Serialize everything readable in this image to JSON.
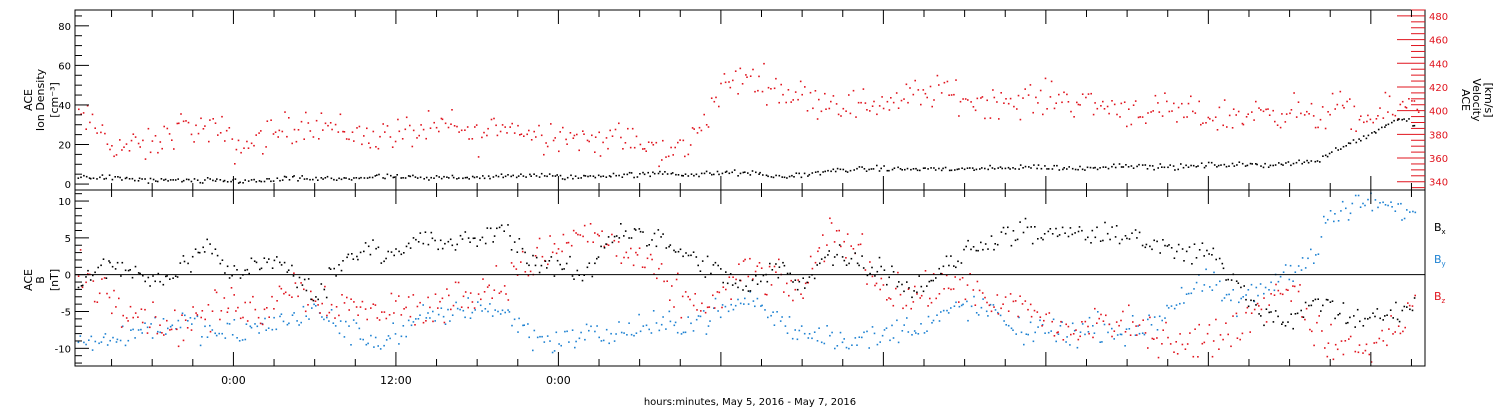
{
  "colors": {
    "black": "#000000",
    "red": "#e0141e",
    "blue": "#1e82d2"
  },
  "chart_data": [
    {
      "type": "scatter",
      "title": "",
      "ylabel_lines": [
        "ACE",
        "Ion Density",
        "[cm⁻³]"
      ],
      "y2label_lines": [
        "ACE",
        "Velocity",
        "[km/s]"
      ],
      "ylim": [
        -3,
        88
      ],
      "yticks": [
        0,
        20,
        40,
        60,
        80
      ],
      "y2lim": [
        333,
        485
      ],
      "y2ticks": [
        340,
        360,
        380,
        400,
        420,
        440,
        460,
        480
      ],
      "xlim": [
        -11.7,
        88
      ],
      "grid": false,
      "series": [
        {
          "role": "density",
          "axis": "left",
          "color": "black",
          "x": [
            -11.5,
            -10,
            -8,
            -6,
            -4,
            -2,
            0,
            2,
            4,
            6,
            8,
            10,
            12,
            14,
            16,
            18,
            20,
            22,
            24,
            26,
            28,
            30,
            32,
            34,
            36,
            38,
            40,
            42,
            44,
            46,
            48,
            50,
            52,
            54,
            56,
            58,
            60,
            62,
            64,
            66,
            68,
            70,
            72,
            74,
            76,
            78,
            80,
            81.5,
            82.5,
            83.5,
            84.5,
            85.5,
            86.5,
            87.2
          ],
          "values": [
            4,
            4,
            3,
            2,
            2,
            2,
            2,
            2,
            3,
            3,
            3,
            4,
            4,
            3,
            4,
            4,
            4,
            5,
            4,
            4,
            5,
            5,
            6,
            5,
            6,
            6,
            4,
            5,
            7,
            8,
            8,
            8,
            8,
            8,
            8,
            9,
            9,
            8,
            9,
            10,
            9,
            9,
            10,
            10,
            10,
            11,
            12,
            18,
            22,
            24,
            28,
            32,
            34,
            30
          ],
          "points": 520,
          "scatter": 1.2
        },
        {
          "role": "velocity",
          "axis": "right",
          "color": "red",
          "x": [
            -11.5,
            -10,
            -9,
            -8,
            -6,
            -4,
            -2,
            -1,
            0,
            1,
            2,
            4,
            6,
            8,
            10,
            12,
            14,
            16,
            18,
            20,
            22,
            24,
            26,
            28,
            30,
            31,
            32,
            33,
            34,
            36,
            38,
            40,
            42,
            44,
            46,
            48,
            50,
            52,
            54,
            56,
            58,
            60,
            62,
            64,
            66,
            68,
            70,
            72,
            74,
            76,
            78,
            80,
            80.5,
            81.5,
            82.5,
            83.5,
            84.5,
            85.5,
            86.5,
            87.5
          ],
          "values": [
            396,
            385,
            372,
            370,
            370,
            388,
            384,
            383,
            370,
            372,
            378,
            386,
            392,
            384,
            378,
            382,
            383,
            388,
            378,
            390,
            380,
            382,
            375,
            378,
            372,
            368,
            362,
            370,
            378,
            420,
            430,
            420,
            412,
            409,
            405,
            408,
            412,
            418,
            410,
            409,
            408,
            412,
            410,
            405,
            402,
            400,
            398,
            396,
            395,
            400,
            402,
            392,
            400,
            405,
            395,
            392,
            396,
            400,
            404,
            408
          ],
          "points": 560,
          "scatter": 12
        }
      ]
    },
    {
      "type": "scatter",
      "title": "",
      "ylabel_lines": [
        "ACE",
        "B",
        "[nT]"
      ],
      "ylim": [
        -12.4,
        11.5
      ],
      "yticks": [
        -10,
        -5,
        0,
        5,
        10
      ],
      "xlim": [
        -11.7,
        88
      ],
      "xticks": [
        0,
        12,
        24
      ],
      "xticklabels": [
        "0:00",
        "12:00",
        "0:00"
      ],
      "xlabel": "hours:minutes, May  5, 2016 - May  7, 2016",
      "zero_line": true,
      "legend_position": "right",
      "grid": false,
      "series": [
        {
          "name": "Bx",
          "name_main": "B",
          "name_sub": "x",
          "color": "black",
          "x": [
            -11.5,
            -10,
            -8,
            -6,
            -4,
            -2,
            0,
            2,
            4,
            6,
            8,
            10,
            12,
            14,
            16,
            18,
            20,
            22,
            24,
            26,
            28,
            30,
            32,
            34,
            36,
            38,
            40,
            42,
            44,
            46,
            48,
            50,
            52,
            54,
            56,
            58,
            60,
            62,
            64,
            66,
            68,
            70,
            72,
            74,
            76,
            78,
            80,
            80.5,
            82,
            84,
            86,
            87.2
          ],
          "values": [
            -2,
            1,
            1,
            -1,
            1,
            4,
            0,
            2,
            1,
            -3,
            2,
            4,
            3,
            5,
            4,
            5,
            6,
            2,
            1,
            0,
            6,
            6,
            4,
            2,
            0,
            -2,
            1,
            -1,
            3,
            2,
            1,
            -2,
            0,
            3,
            5,
            6,
            5,
            6,
            5,
            6,
            4,
            3,
            3,
            -1,
            -5,
            -6,
            -4,
            -3,
            -6,
            -6,
            -5,
            -4
          ],
          "points": 540,
          "scatter": 1.4
        },
        {
          "name": "By",
          "name_main": "B",
          "name_sub": "y",
          "color": "blue",
          "x": [
            -11.5,
            -10,
            -8,
            -6,
            -4,
            -2,
            0,
            2,
            4,
            6,
            8,
            10,
            12,
            14,
            16,
            18,
            20,
            22,
            24,
            26,
            28,
            30,
            32,
            34,
            36,
            38,
            40,
            42,
            44,
            46,
            48,
            50,
            52,
            54,
            56,
            58,
            60,
            62,
            64,
            66,
            68,
            70,
            72,
            74,
            76,
            78,
            80,
            80.5,
            82,
            84,
            86,
            87.2
          ],
          "values": [
            -9,
            -9,
            -8,
            -7,
            -6,
            -8,
            -8,
            -7,
            -6,
            -5,
            -7,
            -9,
            -8,
            -6,
            -5,
            -4,
            -5,
            -8,
            -9,
            -8,
            -8,
            -7,
            -7,
            -6,
            -5,
            -3,
            -6,
            -8,
            -8,
            -9,
            -8,
            -7,
            -6,
            -4,
            -5,
            -8,
            -7,
            -8,
            -7,
            -8,
            -6,
            -3,
            -1,
            -4,
            -2,
            1,
            3,
            7,
            9,
            10,
            9,
            8
          ],
          "points": 540,
          "scatter": 1.6
        },
        {
          "name": "Bz",
          "name_main": "B",
          "name_sub": "z",
          "color": "red",
          "x": [
            -11.5,
            -10,
            -8,
            -6,
            -4,
            -2,
            0,
            2,
            4,
            6,
            8,
            10,
            12,
            14,
            16,
            18,
            20,
            22,
            24,
            26,
            28,
            30,
            32,
            34,
            36,
            38,
            40,
            42,
            44,
            46,
            48,
            50,
            52,
            54,
            56,
            58,
            60,
            62,
            64,
            66,
            68,
            70,
            72,
            74,
            76,
            78,
            80,
            80.5,
            82,
            84,
            86,
            87.2
          ],
          "values": [
            1,
            -2,
            -4,
            -6,
            -7,
            -5,
            -4,
            -5,
            -1,
            -3,
            -4,
            -5,
            -4,
            -5,
            -3,
            -2,
            -1,
            2,
            4,
            6,
            4,
            2,
            -2,
            -4,
            -3,
            1,
            -1,
            -2,
            6,
            4,
            -2,
            -3,
            -2,
            -1,
            -5,
            -4,
            -6,
            -8,
            -6,
            -7,
            -8,
            -9,
            -9,
            -7,
            -4,
            -1,
            -8,
            -9,
            -10,
            -10,
            -7,
            -3
          ],
          "points": 560,
          "scatter": 2.2
        }
      ]
    }
  ]
}
